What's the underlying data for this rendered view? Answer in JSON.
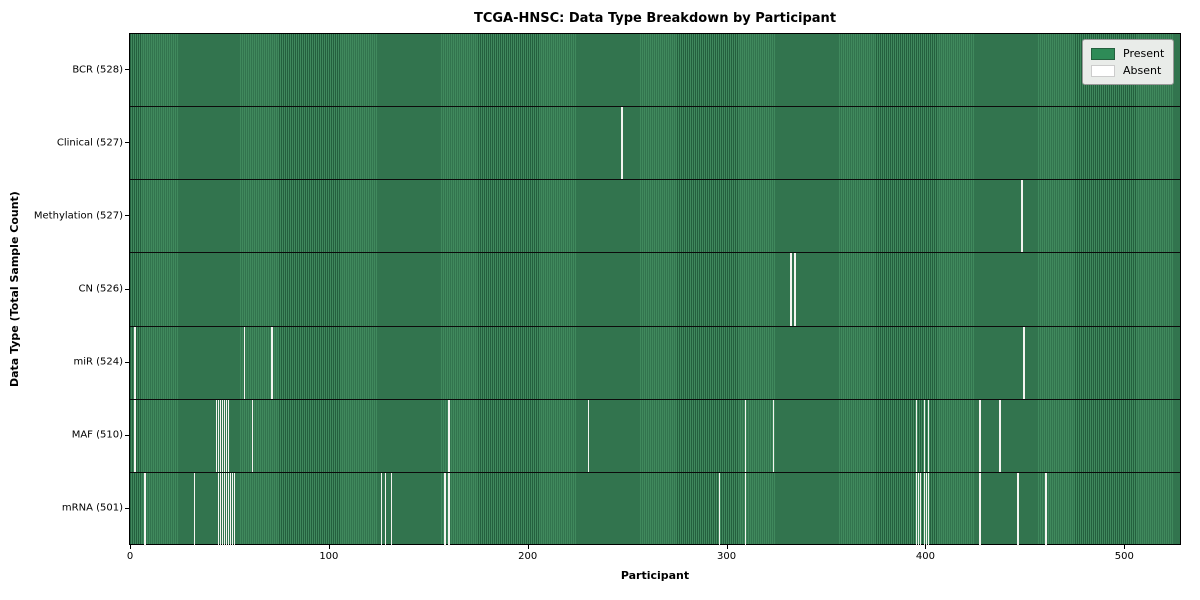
{
  "chart_data": {
    "type": "heatmap",
    "title": "TCGA-HNSC: Data Type Breakdown by Participant",
    "xlabel": "Participant",
    "ylabel": "Data Type (Total Sample Count)",
    "x_range": [
      0,
      528
    ],
    "x_ticks": [
      0,
      100,
      200,
      300,
      400,
      500
    ],
    "grid": false,
    "legend_position": "upper right",
    "legend": [
      {
        "label": "Present",
        "color": "#2e8b57"
      },
      {
        "label": "Absent",
        "color": "#ffffff"
      }
    ],
    "rows": [
      {
        "label": "BCR (528)",
        "data_type": "BCR",
        "total": 528,
        "absent_participants": []
      },
      {
        "label": "Clinical (527)",
        "data_type": "Clinical",
        "total": 527,
        "absent_participants": [
          247
        ]
      },
      {
        "label": "Methylation (527)",
        "data_type": "Methylation",
        "total": 527,
        "absent_participants": [
          448
        ]
      },
      {
        "label": "CN (526)",
        "data_type": "CN",
        "total": 526,
        "absent_participants": [
          332,
          334
        ]
      },
      {
        "label": "miR (524)",
        "data_type": "miR",
        "total": 524,
        "absent_participants": [
          2,
          57,
          71,
          449
        ]
      },
      {
        "label": "MAF (510)",
        "data_type": "MAF",
        "total": 510,
        "absent_participants": [
          2,
          43,
          44,
          45,
          46,
          47,
          48,
          49,
          61,
          160,
          230,
          309,
          323,
          395,
          399,
          401,
          427,
          437
        ]
      },
      {
        "label": "mRNA (501)",
        "data_type": "mRNA",
        "total": 501,
        "absent_participants": [
          7,
          32,
          44,
          45,
          46,
          47,
          48,
          49,
          50,
          51,
          52,
          126,
          128,
          131,
          158,
          160,
          296,
          309,
          395,
          396,
          397,
          399,
          400,
          401,
          427,
          446,
          460
        ]
      }
    ],
    "colors": {
      "present_fill": "#40895d",
      "present_edge": "#24603e",
      "absent": "#f4f4f0",
      "row_separator": "#0b0b0b"
    }
  }
}
